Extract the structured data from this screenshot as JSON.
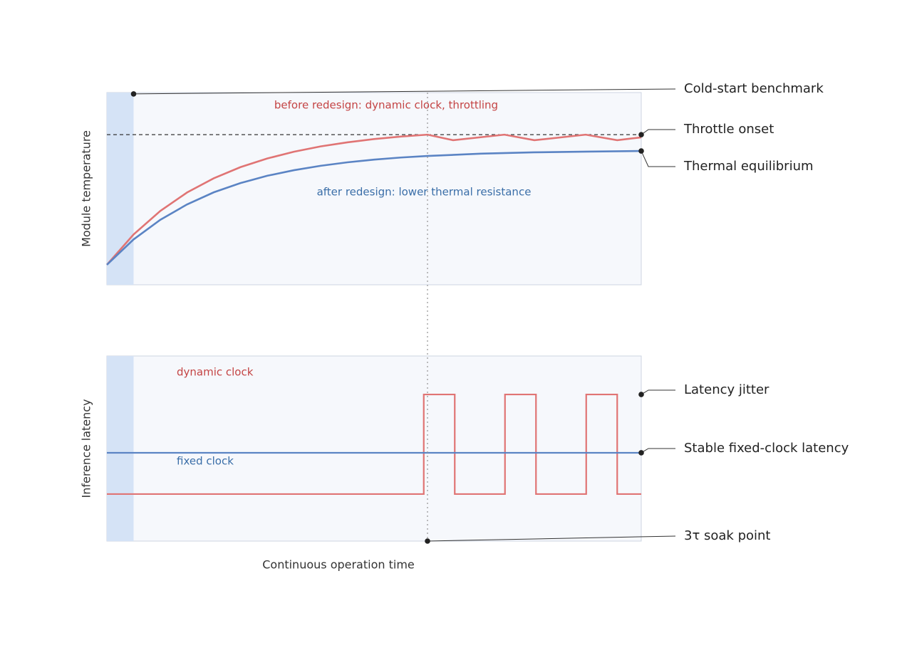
{
  "chart_data": [
    {
      "type": "line",
      "y_label": "Module temperature",
      "xlim": [
        0,
        100
      ],
      "ylim": [
        0,
        100
      ],
      "band": [
        0,
        5
      ],
      "threshold": 78.1,
      "marker_x": 60,
      "series": [
        {
          "name": "before redesign: dynamic clock, throttling",
          "color": "#e07474",
          "x": [
            0,
            5,
            10,
            15,
            20,
            25,
            30,
            35,
            40,
            45,
            50,
            55,
            60,
            64.8,
            74.4,
            80,
            89.6,
            95.5,
            100
          ],
          "values": [
            10.4,
            26.2,
            38.4,
            48.0,
            55.4,
            61.2,
            65.7,
            69.2,
            72.0,
            74.1,
            75.8,
            77.1,
            78.1,
            75.2,
            78.1,
            75.2,
            78.1,
            75.2,
            76.7
          ]
        },
        {
          "name": "after redesign: lower thermal resistance",
          "color": "#5b84c4",
          "x": [
            0,
            5,
            10,
            15,
            20,
            25,
            30,
            35,
            40,
            45,
            50,
            55,
            60,
            70,
            80,
            90,
            100
          ],
          "values": [
            10.4,
            23.6,
            33.8,
            41.8,
            48.1,
            52.9,
            56.7,
            59.6,
            61.9,
            63.7,
            65.1,
            66.2,
            67.0,
            68.2,
            68.9,
            69.3,
            69.6
          ]
        }
      ],
      "annotations": [
        {
          "text": "Cold-start benchmark",
          "x": 5,
          "y": 99.3
        },
        {
          "text": "Throttle onset",
          "x": 100,
          "y": 78.1
        },
        {
          "text": "Thermal equilibrium",
          "x": 100,
          "y": 69.6
        }
      ]
    },
    {
      "type": "line",
      "y_label": "Inference latency",
      "x_label": "Continuous operation time",
      "xlim": [
        0,
        100
      ],
      "ylim": [
        0,
        100
      ],
      "band": [
        0,
        5
      ],
      "marker_x": 60,
      "series": [
        {
          "name": "dynamic clock",
          "color": "#e07474",
          "x": [
            0,
            59.3,
            59.3,
            65.1,
            65.1,
            74.5,
            74.5,
            80.3,
            80.3,
            89.7,
            89.7,
            95.5,
            95.5,
            100
          ],
          "values": [
            25.4,
            25.4,
            79.2,
            79.2,
            25.4,
            25.4,
            79.2,
            79.2,
            25.4,
            25.4,
            79.2,
            79.2,
            25.4,
            25.4
          ]
        },
        {
          "name": "fixed clock",
          "color": "#5b84c4",
          "x": [
            0,
            100
          ],
          "values": [
            47.7,
            47.7
          ]
        }
      ],
      "annotations": [
        {
          "text": "Latency jitter",
          "x": 100,
          "y": 79.2
        },
        {
          "text": "Stable fixed-clock latency",
          "x": 100,
          "y": 47.7
        },
        {
          "text": "3τ soak point",
          "x": 60,
          "y": 0
        }
      ]
    }
  ]
}
